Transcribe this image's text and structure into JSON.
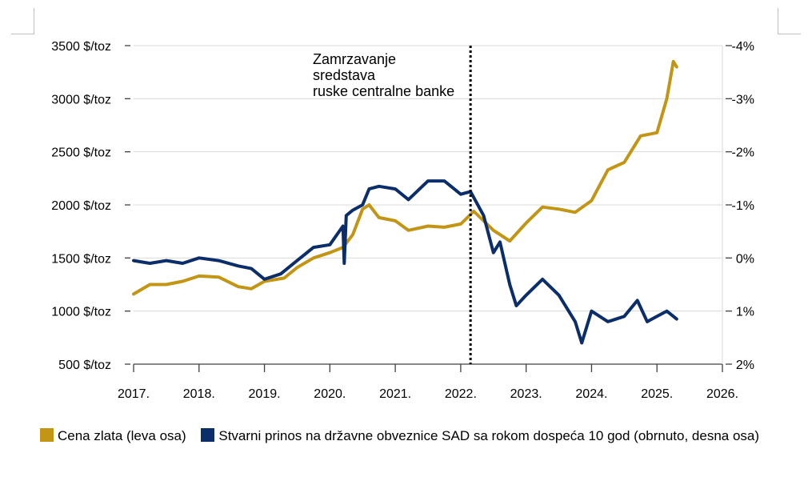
{
  "chart_data": {
    "type": "line",
    "x_ticks": [
      "2017.",
      "2018.",
      "2019.",
      "2020.",
      "2021.",
      "2022.",
      "2023.",
      "2024.",
      "2025.",
      "2026."
    ],
    "xlim": [
      2017,
      2026
    ],
    "left_axis": {
      "ticks": [
        "500 $/toz",
        "1000 $/toz",
        "1500 $/toz",
        "2000 $/toz",
        "2500 $/toz",
        "3000 $/toz",
        "3500 $/toz"
      ],
      "ylim": [
        500,
        3500
      ]
    },
    "right_axis": {
      "ticks": [
        "2%",
        "1%",
        "0%",
        "-1%",
        "-2%",
        "-3%",
        "-4%"
      ],
      "ylim": [
        2,
        -4
      ],
      "inverted": true
    },
    "grid": true,
    "vline": {
      "x": 2022.15,
      "style": "dotted"
    },
    "annotation": [
      "Zamrzavanje",
      "sredstava",
      "ruske centralne banke"
    ],
    "series": [
      {
        "name": "Cena zlata (leva osa)",
        "axis": "left",
        "color": "#c39515",
        "x": [
          2017.0,
          2017.25,
          2017.5,
          2017.75,
          2018.0,
          2018.3,
          2018.6,
          2018.8,
          2019.0,
          2019.3,
          2019.5,
          2019.75,
          2020.0,
          2020.2,
          2020.35,
          2020.5,
          2020.6,
          2020.75,
          2021.0,
          2021.2,
          2021.5,
          2021.75,
          2022.0,
          2022.2,
          2022.5,
          2022.75,
          2023.0,
          2023.25,
          2023.5,
          2023.75,
          2024.0,
          2024.25,
          2024.5,
          2024.75,
          2025.0,
          2025.15,
          2025.25,
          2025.3
        ],
        "values": [
          1160,
          1250,
          1250,
          1280,
          1330,
          1320,
          1230,
          1210,
          1280,
          1310,
          1410,
          1500,
          1550,
          1600,
          1720,
          1960,
          2000,
          1880,
          1850,
          1760,
          1800,
          1790,
          1820,
          1940,
          1760,
          1660,
          1830,
          1980,
          1960,
          1930,
          2040,
          2330,
          2400,
          2650,
          2680,
          3000,
          3350,
          3300
        ]
      },
      {
        "name": "Stvarni prinos na državne obveznice SAD sa rokom dospeća 10 god (obrnuto, desna osa)",
        "axis": "right",
        "color": "#0b2e6b",
        "x": [
          2017.0,
          2017.25,
          2017.5,
          2017.75,
          2018.0,
          2018.3,
          2018.6,
          2018.8,
          2019.0,
          2019.25,
          2019.5,
          2019.75,
          2020.0,
          2020.2,
          2020.22,
          2020.25,
          2020.35,
          2020.5,
          2020.6,
          2020.75,
          2021.0,
          2021.2,
          2021.5,
          2021.75,
          2022.0,
          2022.15,
          2022.35,
          2022.5,
          2022.6,
          2022.75,
          2022.85,
          2023.0,
          2023.25,
          2023.5,
          2023.75,
          2023.85,
          2024.0,
          2024.25,
          2024.5,
          2024.7,
          2024.85,
          2025.0,
          2025.15,
          2025.3
        ],
        "values": [
          0.05,
          0.1,
          0.05,
          0.1,
          0.0,
          0.05,
          0.15,
          0.2,
          0.4,
          0.3,
          0.05,
          -0.2,
          -0.25,
          -0.6,
          0.1,
          -0.8,
          -0.9,
          -1.0,
          -1.3,
          -1.35,
          -1.3,
          -1.1,
          -1.45,
          -1.45,
          -1.2,
          -1.25,
          -0.8,
          -0.1,
          -0.3,
          0.5,
          0.9,
          0.7,
          0.4,
          0.7,
          1.2,
          1.6,
          1.0,
          1.2,
          1.1,
          0.8,
          1.2,
          1.1,
          1.0,
          1.15
        ]
      }
    ]
  },
  "legend": {
    "items": [
      {
        "label": "Cena zlata (leva osa)",
        "color": "#c39515"
      },
      {
        "label": "Stvarni prinos na državne obveznice SAD sa rokom dospeća 10 god (obrnuto, desna osa)",
        "color": "#0b2e6b"
      }
    ]
  }
}
